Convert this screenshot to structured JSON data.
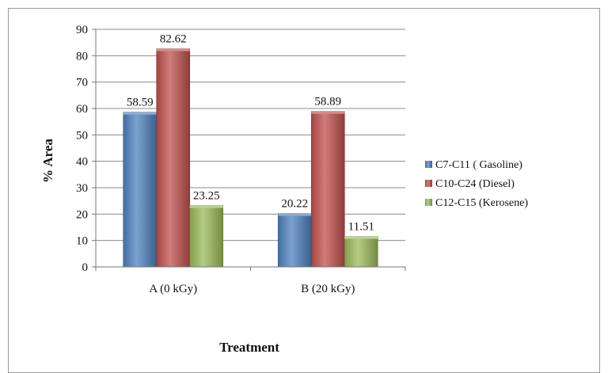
{
  "chart_data": {
    "type": "bar",
    "title": "",
    "xlabel": "Treatment",
    "ylabel": "% Area",
    "ylim": [
      0,
      90
    ],
    "yticks": [
      0,
      10,
      20,
      30,
      40,
      50,
      60,
      70,
      80,
      90
    ],
    "categories": [
      "A (0 kGy)",
      "B (20 kGy)"
    ],
    "series": [
      {
        "name": "C7-C11 ( Gasoline)",
        "values": [
          58.59,
          20.22
        ],
        "color": "#4f81bd",
        "value_labels": [
          "58.59",
          "20.22"
        ]
      },
      {
        "name": "C10-C24 (Diesel)",
        "values": [
          82.62,
          58.89
        ],
        "color": "#c0504d",
        "value_labels": [
          "82.62",
          "58.89"
        ]
      },
      {
        "name": "C12-C15 (Kerosene)",
        "values": [
          23.25,
          11.51
        ],
        "color": "#9bbb59",
        "value_labels": [
          "23.25",
          "11.51"
        ]
      }
    ],
    "grid": true,
    "legend": "right"
  }
}
